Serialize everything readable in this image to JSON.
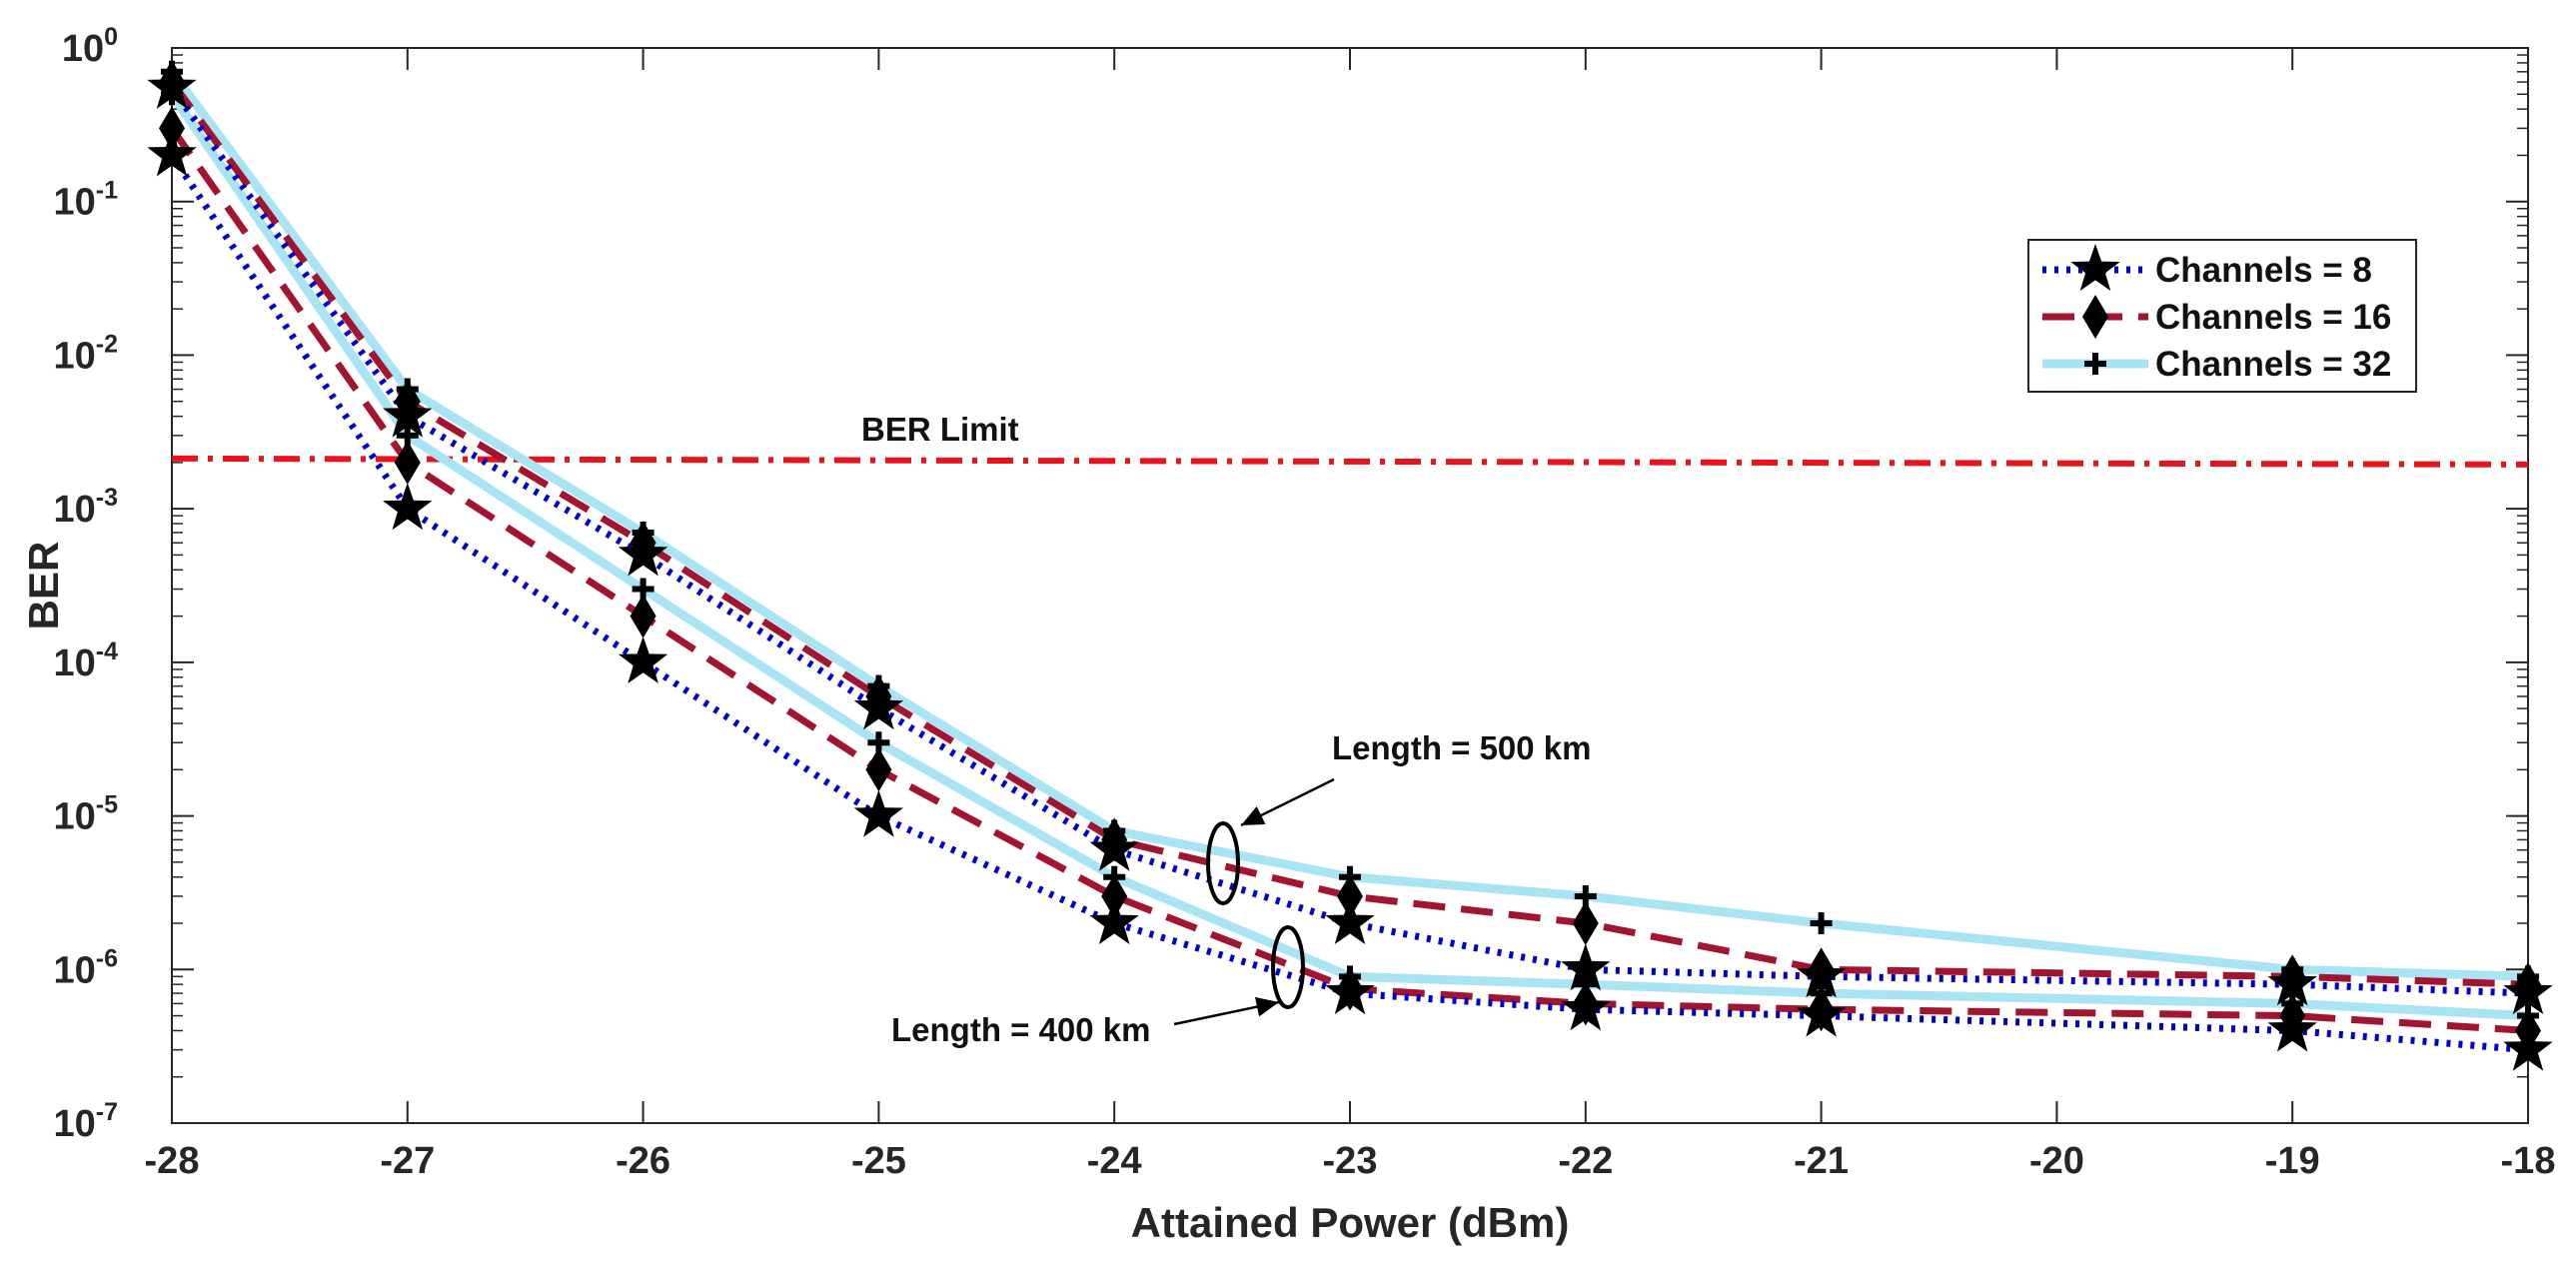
{
  "chart_data": {
    "type": "line",
    "title": "",
    "xlabel": "Attained Power (dBm)",
    "ylabel": "BER",
    "yscale": "log",
    "xlim": [
      -28,
      -18
    ],
    "ylim": [
      1e-07,
      1
    ],
    "xticks": [
      -28,
      -27,
      -26,
      -25,
      -24,
      -23,
      -22,
      -21,
      -20,
      -19,
      -18
    ],
    "xtick_labels": [
      "-28",
      "-27",
      "-26",
      "-25",
      "-24",
      "-23",
      "-22",
      "-21",
      "-20",
      "-19",
      "-18"
    ],
    "yticks": [
      {
        "base": "10",
        "exp": "0",
        "value": 1
      },
      {
        "base": "10",
        "exp": "-1",
        "value": 0.1
      },
      {
        "base": "10",
        "exp": "-2",
        "value": 0.01
      },
      {
        "base": "10",
        "exp": "-3",
        "value": 0.001
      },
      {
        "base": "10",
        "exp": "-4",
        "value": 0.0001
      },
      {
        "base": "10",
        "exp": "-5",
        "value": 1e-05
      },
      {
        "base": "10",
        "exp": "-6",
        "value": 1e-06
      },
      {
        "base": "10",
        "exp": "-7",
        "value": 1e-07
      }
    ],
    "grid": false,
    "legend_position": "top-right",
    "legend": [
      {
        "label": "Channels = 8",
        "color": "#0000CC",
        "dash": "dotted",
        "marker": "star"
      },
      {
        "label": "Channels = 16",
        "color": "#A2142F",
        "dash": "dashed",
        "marker": "diamond"
      },
      {
        "label": "Channels = 32",
        "color": "#A8E4F4",
        "dash": "solid",
        "marker": "plus"
      }
    ],
    "x": [
      -28,
      -27,
      -26,
      -25,
      -24,
      -23,
      -22,
      -21,
      -19,
      -18
    ],
    "series": [
      {
        "name": "Channels = 8",
        "group": "Length = 400 km",
        "color": "#0000CC",
        "dash": "dotted",
        "marker": "star",
        "values": [
          0.2,
          0.001,
          0.0001,
          1e-05,
          2e-06,
          7e-07,
          5.5e-07,
          5e-07,
          4e-07,
          3e-07
        ]
      },
      {
        "name": "Channels = 16",
        "group": "Length = 400 km",
        "color": "#A2142F",
        "dash": "dashed",
        "marker": "diamond",
        "values": [
          0.3,
          0.002,
          0.0002,
          2e-05,
          3e-06,
          7.5e-07,
          6e-07,
          5.5e-07,
          5e-07,
          4e-07
        ]
      },
      {
        "name": "Channels = 32",
        "group": "Length = 400 km",
        "color": "#A8E4F4",
        "dash": "solid",
        "marker": "plus",
        "values": [
          0.5,
          0.003,
          0.0003,
          3e-05,
          4e-06,
          9e-07,
          8e-07,
          7e-07,
          6e-07,
          5e-07
        ]
      },
      {
        "name": "Channels = 8",
        "group": "Length = 500 km",
        "color": "#0000CC",
        "dash": "dotted",
        "marker": "star",
        "values": [
          0.55,
          0.004,
          0.0005,
          5e-05,
          6e-06,
          2e-06,
          1e-06,
          9e-07,
          8e-07,
          7e-07
        ]
      },
      {
        "name": "Channels = 16",
        "group": "Length = 500 km",
        "color": "#A2142F",
        "dash": "dashed",
        "marker": "diamond",
        "values": [
          0.6,
          0.005,
          0.0006,
          6e-05,
          7e-06,
          3e-06,
          2e-06,
          1e-06,
          9e-07,
          8e-07
        ]
      },
      {
        "name": "Channels = 32",
        "group": "Length = 500 km",
        "color": "#A8E4F4",
        "dash": "solid",
        "marker": "plus",
        "values": [
          0.7,
          0.006,
          0.0007,
          7e-05,
          8e-06,
          4e-06,
          3e-06,
          2e-06,
          1e-06,
          9e-07
        ]
      }
    ],
    "reference_line": {
      "label": "BER Limit",
      "value": 0.002,
      "color": "#E8141C"
    },
    "annotations": [
      {
        "text": "Length = 500 km",
        "group": "Length = 500 km"
      },
      {
        "text": "Length = 400 km",
        "group": "Length = 400 km"
      }
    ]
  }
}
